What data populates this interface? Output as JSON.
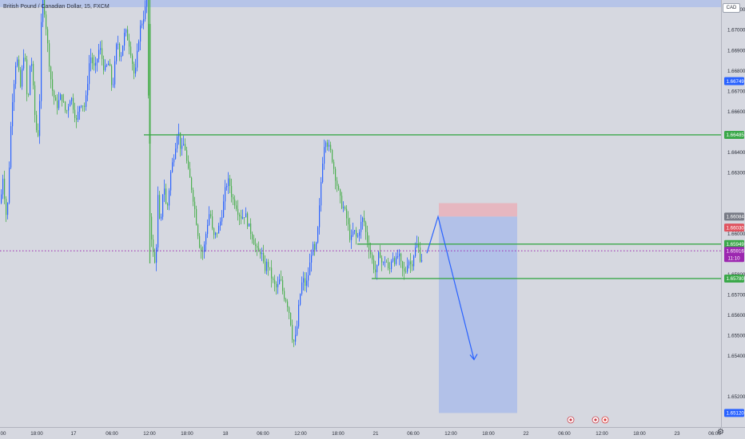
{
  "header": {
    "title": "British Pound / Canadian Dollar, 15, FXCM",
    "currency": "CAD"
  },
  "chart_data": {
    "type": "candlestick",
    "symbol": "GBPCAD",
    "timeframe": "15",
    "ylim": [
      1.65145,
      1.67225
    ],
    "price_ticks": [
      {
        "value": 1.671,
        "label": "1.67100"
      },
      {
        "value": 1.67,
        "label": "1.67000"
      },
      {
        "value": 1.669,
        "label": "1.66900"
      },
      {
        "value": 1.668,
        "label": "1.66800"
      },
      {
        "value": 1.667,
        "label": "1.66700"
      },
      {
        "value": 1.666,
        "label": "1.66600"
      },
      {
        "value": 1.664,
        "label": "1.66400"
      },
      {
        "value": 1.663,
        "label": "1.66300"
      },
      {
        "value": 1.66,
        "label": "1.66000"
      },
      {
        "value": 1.658,
        "label": "1.65800"
      },
      {
        "value": 1.657,
        "label": "1.65700"
      },
      {
        "value": 1.656,
        "label": "1.65600"
      },
      {
        "value": 1.655,
        "label": "1.65500"
      },
      {
        "value": 1.654,
        "label": "1.65400"
      },
      {
        "value": 1.652,
        "label": "1.65200"
      }
    ],
    "time_ticks": [
      "00",
      "18:00",
      "17",
      "06:00",
      "12:00",
      "18:00",
      "18",
      "06:00",
      "12:00",
      "18:00",
      "21",
      "06:00",
      "12:00",
      "18:00",
      "22",
      "06:00",
      "12:00",
      "18:00",
      "23",
      "06:00"
    ],
    "horizontal_levels": [
      {
        "value": 1.66485,
        "label": "1.66485",
        "color": "#3ba84a"
      },
      {
        "value": 1.65949,
        "label": "1.65949",
        "color": "#3ba84a"
      },
      {
        "value": 1.6578,
        "label": "1.65780",
        "color": "#3ba84a"
      }
    ],
    "current_price": {
      "value": 1.65916,
      "label": "1.65916",
      "countdown": "11:10",
      "color": "#9c27b0"
    },
    "last_marker": {
      "value": 1.66749,
      "label": "1.66749",
      "color": "#2962ff"
    },
    "position": {
      "side": "short",
      "stop": {
        "value": 1.6603,
        "label": "1.66030",
        "color": "#e05460"
      },
      "entry": {
        "value": 1.66084,
        "label": "1.66084",
        "color": "#787b86"
      },
      "target": {
        "value": 1.6512,
        "label": "1.65120",
        "color": "#2962ff"
      }
    },
    "projection": {
      "description_path": [
        1.65904,
        1.66084,
        1.65382
      ],
      "color": "#2962ff"
    },
    "colors": {
      "up": "#2962ff",
      "down": "#4caf50",
      "background": "#d6d8e0",
      "stop_zone": "#e8b4bc",
      "target_zone": "#b0c0e8"
    }
  }
}
